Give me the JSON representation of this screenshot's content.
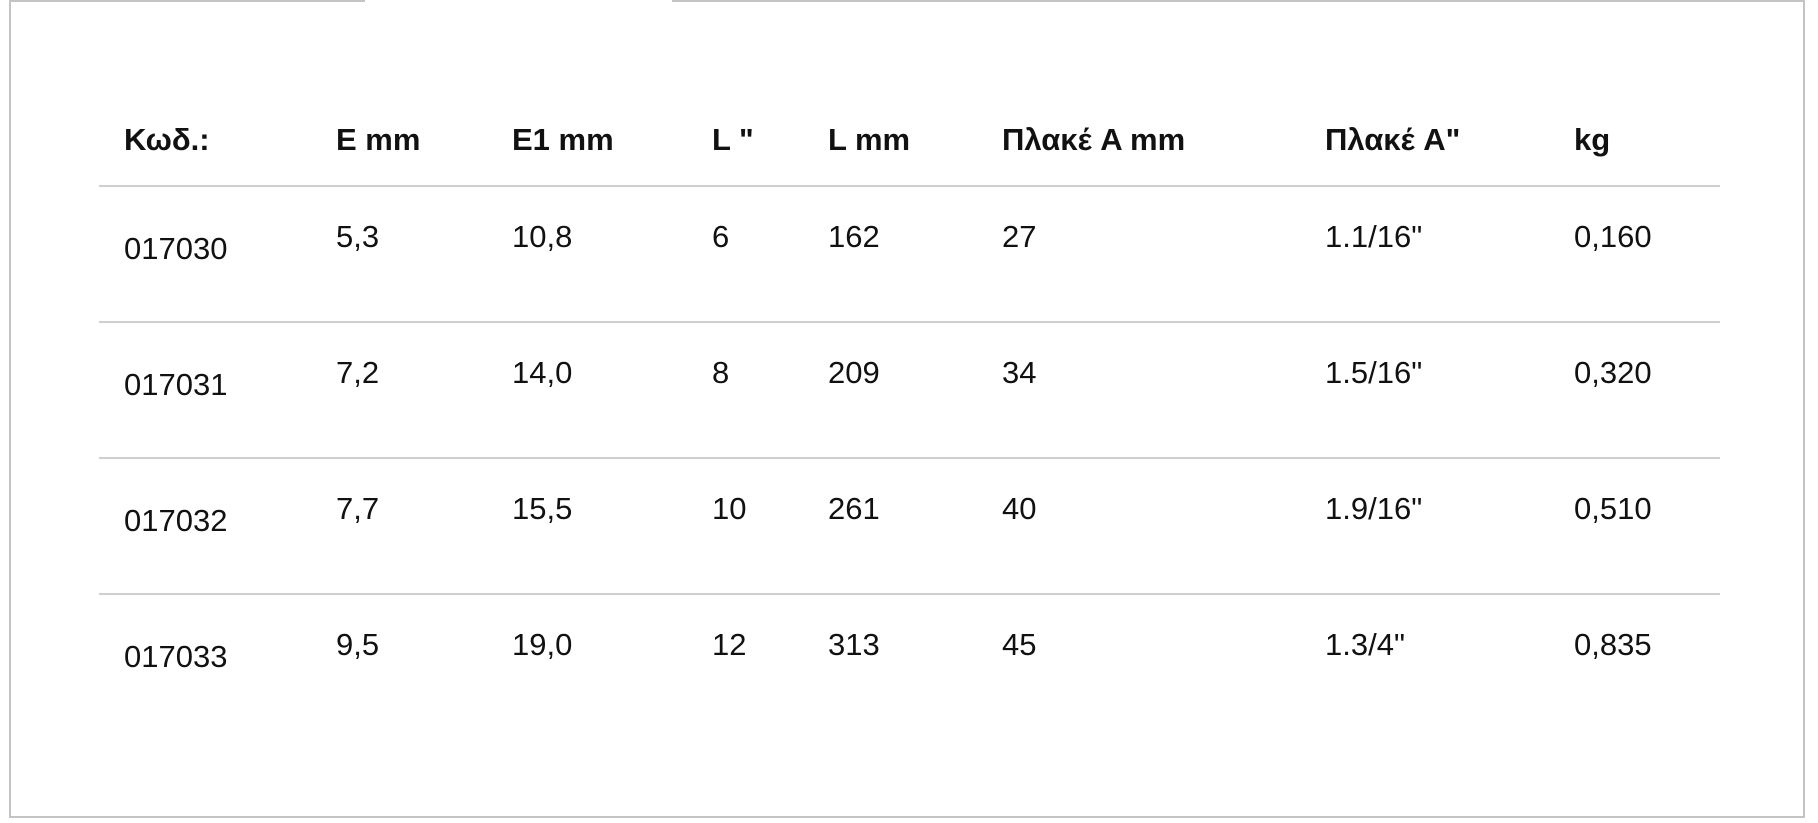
{
  "table": {
    "headers": [
      "Κωδ.:",
      "E mm",
      "E1 mm",
      "L \"",
      "L mm",
      "Πλακέ A mm",
      "Πλακέ A\"",
      "kg"
    ],
    "rows": [
      [
        "017030",
        "5,3",
        "10,8",
        "6",
        "162",
        "27",
        "1.1/16\"",
        "0,160"
      ],
      [
        "017031",
        "7,2",
        "14,0",
        "8",
        "209",
        "34",
        "1.5/16\"",
        "0,320"
      ],
      [
        "017032",
        "7,7",
        "15,5",
        "10",
        "261",
        "40",
        "1.9/16\"",
        "0,510"
      ],
      [
        "017033",
        "9,5",
        "19,0",
        "12",
        "313",
        "45",
        "1.3/4\"",
        "0,835"
      ]
    ]
  },
  "colors": {
    "border": "#c4c4c4",
    "divider": "#cfcfcf",
    "text": "#111111"
  }
}
